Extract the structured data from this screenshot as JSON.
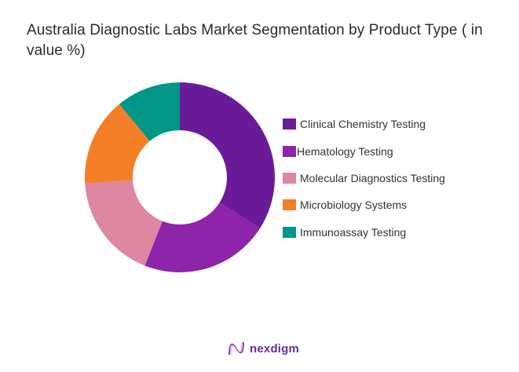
{
  "title": "Australia Diagnostic Labs Market Segmentation by Product Type ( in value %)",
  "chart_data": {
    "type": "pie",
    "variant": "donut",
    "title": "Australia Diagnostic Labs Market Segmentation by Product Type ( in value %)",
    "categories": [
      "Clinical Chemistry Testing",
      "Hematology Testing",
      "Molecular Diagnostics Testing",
      "Microbiology Systems",
      "Immunoassay Testing"
    ],
    "values": [
      34,
      22,
      18,
      15,
      11
    ],
    "colors": [
      "#6a1b9a",
      "#8e24aa",
      "#de87a1",
      "#f57f26",
      "#009688"
    ],
    "legend_position": "right",
    "start_angle": "12 o'clock, clockwise",
    "data_labels": false
  },
  "legend": {
    "items": [
      {
        "label": "Clinical Chemistry Testing",
        "color": "#6a1b9a"
      },
      {
        "label": "Hematology Testing",
        "color": "#8e24aa"
      },
      {
        "label": "Molecular Diagnostics Testing",
        "color": "#de87a1"
      },
      {
        "label": "Microbiology Systems",
        "color": "#f57f26"
      },
      {
        "label": "Immunoassay Testing",
        "color": "#009688"
      }
    ]
  },
  "logo": {
    "text": "nexdigm",
    "icon": "nexdigm-wave-logo-icon"
  }
}
